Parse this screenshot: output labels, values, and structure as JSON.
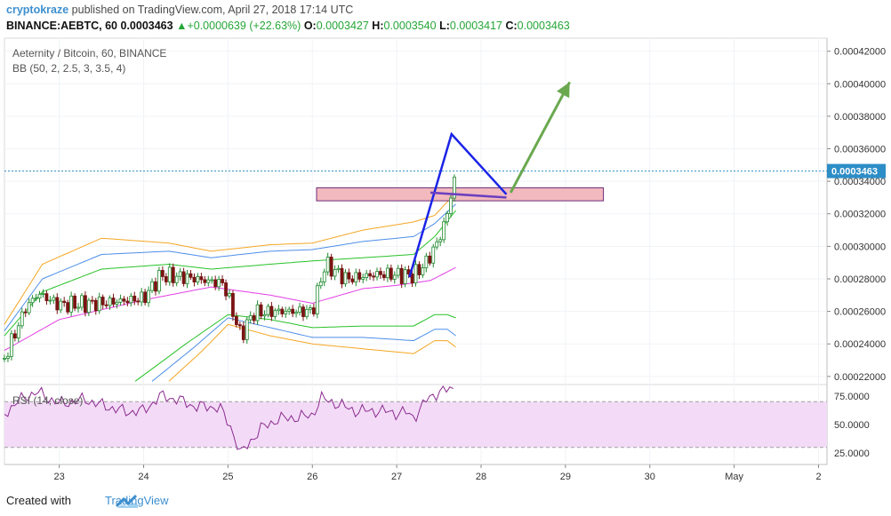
{
  "header": {
    "author": "cryptokraze",
    "published": " published on TradingView.com, April 27, 2018 17:14 UTC",
    "ticker": "BINANCE:AEBTC, 60",
    "last_price": "0.0003463",
    "change_arrow": "▲",
    "change": "+0.0000639 (+22.63%)",
    "o_label": "O:",
    "o_value": "0.0003427",
    "h_label": "H:",
    "h_value": "0.0003540",
    "l_label": "L:",
    "l_value": "0.0003417",
    "c_label": "C:",
    "c_value": "0.0003463"
  },
  "footer": {
    "created_with": "Created with",
    "brand": "TradingView"
  },
  "colors": {
    "up": "#1f8a2e",
    "down": "#7a1414",
    "bb_outer": "#f5a623",
    "bb_mid": "#4d8ee8",
    "bb_inner": "#29c229",
    "bb_basis": "#e33ee3",
    "rsi_line": "#8b2c8f",
    "rsi_band": "#f3dbf7",
    "zone_fill": "#f2b9be",
    "zone_border": "#6b2d7a",
    "pattern_line": "#1b24e6",
    "arrow": "#6aa84f",
    "price_tag": "#2d8dc7"
  },
  "chart_data": {
    "type": "candlestick",
    "instrument": "Aeternity / Bitcoin, 60, BINANCE",
    "indicator": "BB (50, 2, 2.5, 3, 3.5, 4)",
    "y_ticks": [
      "0.00042000",
      "0.00040000",
      "0.00038000",
      "0.00036000",
      "0.00034000",
      "0.00032000",
      "0.00030000",
      "0.00028000",
      "0.00026000",
      "0.00024000",
      "0.00022000"
    ],
    "ylim": [
      0.000215,
      0.000428
    ],
    "current_price_label": "0.0003463",
    "x_ticks": [
      "23",
      "24",
      "25",
      "26",
      "27",
      "28",
      "29",
      "30",
      "May",
      "2"
    ],
    "x_tick_days": [
      23,
      24,
      25,
      26,
      27,
      28,
      29,
      30,
      31,
      32
    ],
    "xlim": [
      22.35,
      32.1
    ],
    "key_points": [
      {
        "day": 22.35,
        "price": 0.000231
      },
      {
        "day": 22.6,
        "price": 0.000262
      },
      {
        "day": 22.75,
        "price": 0.000271
      },
      {
        "day": 23.0,
        "price": 0.000264
      },
      {
        "day": 23.5,
        "price": 0.000265
      },
      {
        "day": 24.0,
        "price": 0.000268
      },
      {
        "day": 24.2,
        "price": 0.000282
      },
      {
        "day": 24.5,
        "price": 0.000281
      },
      {
        "day": 24.95,
        "price": 0.000277
      },
      {
        "day": 25.15,
        "price": 0.000245
      },
      {
        "day": 25.3,
        "price": 0.000259
      },
      {
        "day": 25.6,
        "price": 0.00026
      },
      {
        "day": 26.0,
        "price": 0.00026
      },
      {
        "day": 26.15,
        "price": 0.000289
      },
      {
        "day": 26.4,
        "price": 0.00028
      },
      {
        "day": 26.8,
        "price": 0.000283
      },
      {
        "day": 27.2,
        "price": 0.000282
      },
      {
        "day": 27.35,
        "price": 0.00029
      },
      {
        "day": 27.5,
        "price": 0.000304
      },
      {
        "day": 27.6,
        "price": 0.00032
      },
      {
        "day": 27.7,
        "price": 0.0003463
      }
    ],
    "bollinger": {
      "basis": [
        [
          22.35,
          0.000236
        ],
        [
          23.0,
          0.000255
        ],
        [
          24.0,
          0.000267
        ],
        [
          24.8,
          0.000275
        ],
        [
          25.5,
          0.00027
        ],
        [
          26.0,
          0.000265
        ],
        [
          26.6,
          0.000274
        ],
        [
          27.0,
          0.000276
        ],
        [
          27.4,
          0.000279
        ],
        [
          27.7,
          0.000287
        ]
      ],
      "bands": [
        {
          "name": "inner_upper",
          "points": [
            [
              22.35,
              0.000245
            ],
            [
              22.8,
              0.000272
            ],
            [
              23.5,
              0.000286
            ],
            [
              24.3,
              0.000289
            ],
            [
              24.8,
              0.000286
            ],
            [
              25.5,
              0.000289
            ],
            [
              26.0,
              0.000291
            ],
            [
              26.6,
              0.000293
            ],
            [
              27.2,
              0.000295
            ],
            [
              27.45,
              0.000306
            ],
            [
              27.7,
              0.000322
            ]
          ]
        },
        {
          "name": "mid_upper",
          "points": [
            [
              22.35,
              0.000248
            ],
            [
              22.8,
              0.00028
            ],
            [
              23.5,
              0.000295
            ],
            [
              24.3,
              0.000297
            ],
            [
              24.8,
              0.000293
            ],
            [
              25.5,
              0.000297
            ],
            [
              26.0,
              0.000298
            ],
            [
              26.6,
              0.000303
            ],
            [
              27.2,
              0.000306
            ],
            [
              27.45,
              0.000314
            ],
            [
              27.7,
              0.000326
            ]
          ]
        },
        {
          "name": "outer_upper",
          "points": [
            [
              22.35,
              0.000252
            ],
            [
              22.8,
              0.000289
            ],
            [
              23.5,
              0.000305
            ],
            [
              24.3,
              0.000302
            ],
            [
              24.8,
              0.000297
            ],
            [
              25.5,
              0.000301
            ],
            [
              26.0,
              0.000302
            ],
            [
              26.6,
              0.00031
            ],
            [
              27.2,
              0.000315
            ],
            [
              27.45,
              0.000319
            ],
            [
              27.7,
              0.000333
            ]
          ]
        },
        {
          "name": "inner_lower",
          "points": [
            [
              23.9,
              0.000217
            ],
            [
              24.5,
              0.00024
            ],
            [
              25.0,
              0.000258
            ],
            [
              25.5,
              0.000255
            ],
            [
              26.0,
              0.00025
            ],
            [
              26.6,
              0.000251
            ],
            [
              27.2,
              0.000251
            ],
            [
              27.45,
              0.000258
            ],
            [
              27.6,
              0.000258
            ],
            [
              27.7,
              0.000256
            ]
          ]
        },
        {
          "name": "mid_lower",
          "points": [
            [
              24.1,
              0.000217
            ],
            [
              24.6,
              0.000238
            ],
            [
              25.0,
              0.000256
            ],
            [
              25.5,
              0.00025
            ],
            [
              26.0,
              0.000244
            ],
            [
              26.6,
              0.000244
            ],
            [
              27.2,
              0.000242
            ],
            [
              27.45,
              0.000249
            ],
            [
              27.6,
              0.000249
            ],
            [
              27.7,
              0.000245
            ]
          ]
        },
        {
          "name": "outer_lower",
          "points": [
            [
              24.3,
              0.000217
            ],
            [
              24.7,
              0.000236
            ],
            [
              25.0,
              0.000252
            ],
            [
              25.5,
              0.000245
            ],
            [
              26.0,
              0.00024
            ],
            [
              26.6,
              0.000237
            ],
            [
              27.2,
              0.000234
            ],
            [
              27.45,
              0.000242
            ],
            [
              27.6,
              0.000242
            ],
            [
              27.7,
              0.000238
            ]
          ]
        }
      ]
    },
    "zone": {
      "day_from": 26.05,
      "day_to": 29.45,
      "price_low": 0.000328,
      "price_high": 0.000336
    },
    "pattern": [
      [
        27.15,
        0.000281
      ],
      [
        27.65,
        0.000369
      ],
      [
        28.3,
        0.000332
      ],
      [
        26.8,
        0.000333
      ],
      [
        27.4,
        0.000333
      ],
      [
        28.3,
        0.00033
      ]
    ],
    "arrow": {
      "from": [
        28.35,
        0.000333
      ],
      "to": [
        29.05,
        0.000401
      ]
    },
    "rsi": {
      "label": "RSI (14, close)",
      "ticks": [
        "75.0000",
        "50.0000",
        "25.0000"
      ],
      "band": [
        30,
        70
      ],
      "ylim": [
        15,
        85
      ],
      "points": [
        [
          22.35,
          60
        ],
        [
          22.6,
          75
        ],
        [
          22.75,
          78
        ],
        [
          23.0,
          68
        ],
        [
          23.3,
          72
        ],
        [
          23.5,
          67
        ],
        [
          23.8,
          61
        ],
        [
          24.0,
          62
        ],
        [
          24.2,
          75
        ],
        [
          24.4,
          72
        ],
        [
          24.6,
          66
        ],
        [
          24.9,
          65
        ],
        [
          25.05,
          45
        ],
        [
          25.15,
          24
        ],
        [
          25.25,
          34
        ],
        [
          25.4,
          47
        ],
        [
          25.6,
          55
        ],
        [
          25.8,
          56
        ],
        [
          26.0,
          58
        ],
        [
          26.1,
          73
        ],
        [
          26.3,
          68
        ],
        [
          26.5,
          62
        ],
        [
          26.8,
          62
        ],
        [
          27.0,
          60
        ],
        [
          27.1,
          61
        ],
        [
          27.2,
          56
        ],
        [
          27.35,
          71
        ],
        [
          27.5,
          79
        ],
        [
          27.6,
          80
        ],
        [
          27.7,
          81
        ]
      ]
    }
  }
}
